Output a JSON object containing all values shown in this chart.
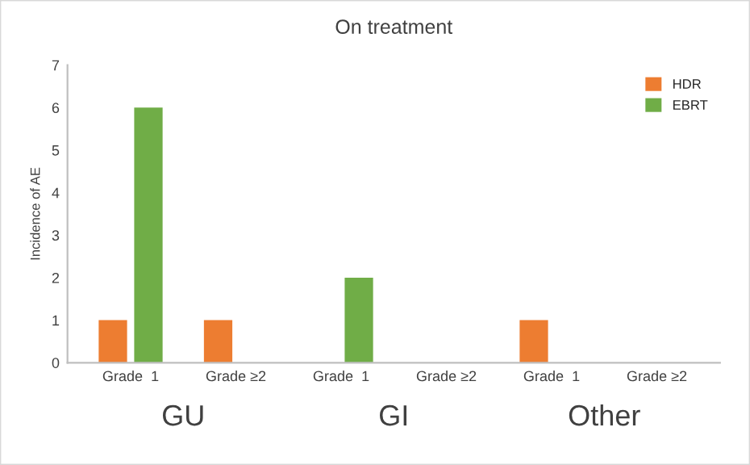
{
  "chart_data": {
    "type": "bar",
    "title": "On treatment",
    "ylabel": "Incidence of AE",
    "categories": [
      "Grade  1",
      "Grade ≥2",
      "Grade  1",
      "Grade ≥2",
      "Grade  1",
      "Grade ≥2"
    ],
    "series": [
      {
        "name": "HDR",
        "color": "#ed7d31",
        "values": [
          1,
          1,
          0,
          0,
          1,
          0
        ]
      },
      {
        "name": "EBRT",
        "color": "#70ad47",
        "values": [
          6,
          0,
          2,
          0,
          0,
          0
        ]
      }
    ],
    "annotations": [
      "GU",
      "GI",
      "Other"
    ],
    "ylim": [
      0,
      7
    ],
    "yticks": [
      0,
      1,
      2,
      3,
      4,
      5,
      6,
      7
    ],
    "grid": false,
    "legend": "top right"
  }
}
